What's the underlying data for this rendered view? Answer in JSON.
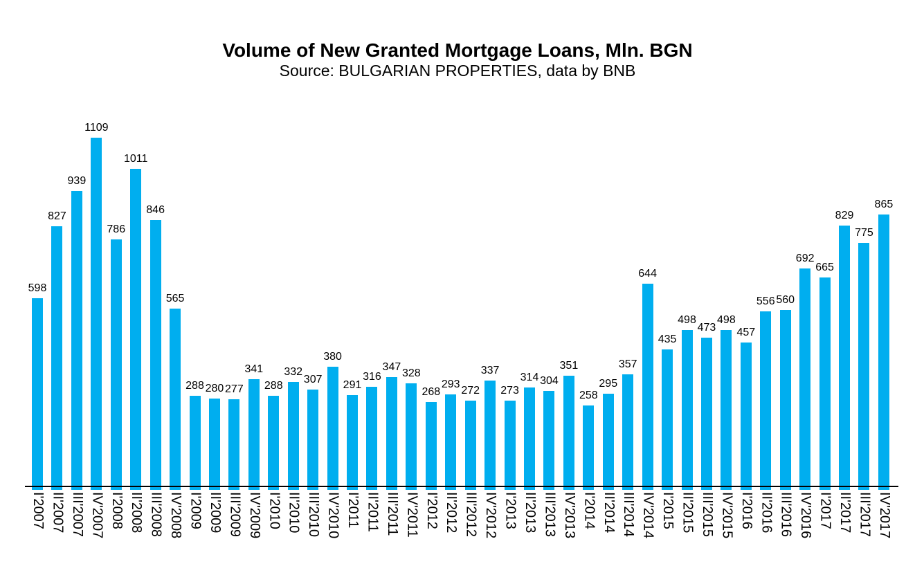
{
  "chart_data": {
    "type": "bar",
    "title": "Volume of New Granted Mortgage Loans, Mln. BGN",
    "subtitle": "Source: BULGARIAN PROPERTIES, data by BNB",
    "categories": [
      "I'2007",
      "II'2007",
      "III'2007",
      "IV'2007",
      "I'2008",
      "II'2008",
      "III'2008",
      "IV'2008",
      "I'2009",
      "II'2009",
      "III'2009",
      "IV'2009",
      "I'2010",
      "II'2010",
      "III'2010",
      "IV'2010",
      "I'2011",
      "II'2011",
      "III'2011",
      "IV'2011",
      "I'2012",
      "II'2012",
      "III'2012",
      "IV'2012",
      "I'2013",
      "II'2013",
      "III'2013",
      "IV'2013",
      "I'2014",
      "II'2014",
      "III'2014",
      "IV'2014",
      "I'2015",
      "II'2015",
      "III'2015",
      "IV'2015",
      "I'2016",
      "II'2016",
      "III'2016",
      "IV'2016",
      "I'2017",
      "II'2017",
      "III'2017",
      "IV'2017"
    ],
    "values": [
      598,
      827,
      939,
      1109,
      786,
      1011,
      846,
      565,
      288,
      280,
      277,
      341,
      288,
      332,
      307,
      380,
      291,
      316,
      347,
      328,
      268,
      293,
      272,
      337,
      273,
      314,
      304,
      351,
      258,
      295,
      357,
      644,
      435,
      498,
      473,
      498,
      457,
      556,
      560,
      692,
      665,
      829,
      775,
      865
    ],
    "data_labels": true,
    "x_tick_rotation_deg": 90,
    "grid": false,
    "legend": false,
    "ylim": [
      0,
      1200
    ],
    "bar_color": "#00AEEF",
    "axis_color": "#000000",
    "background_color": "#FFFFFF",
    "text_color": "#000000"
  }
}
